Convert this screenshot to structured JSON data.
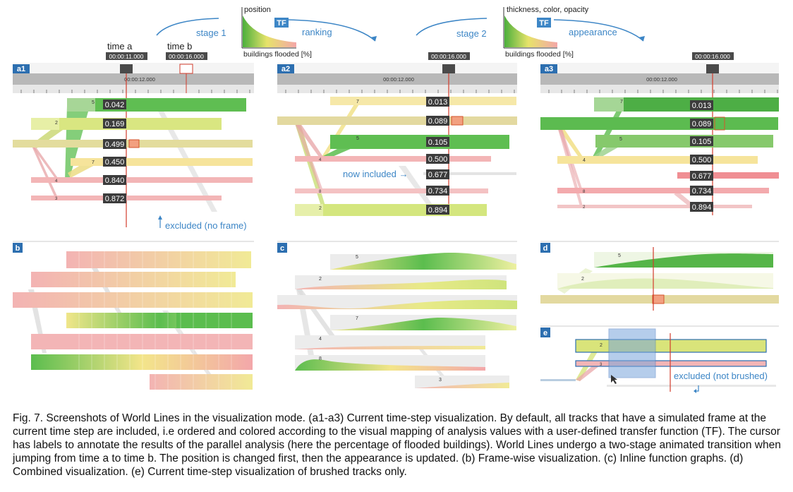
{
  "header": {
    "stage1_label": "stage 1",
    "stage2_label": "stage 2",
    "tf_label": "TF",
    "ranking_label": "ranking",
    "appearance_label": "appearance",
    "tf1_axis_y": "position",
    "tf1_axis_x": "buildings flooded [%]",
    "tf2_axis_y": "thickness, color, opacity",
    "tf2_axis_x": "buildings flooded [%]",
    "time_a_label": "time a",
    "time_b_label": "time b",
    "time_a_value": "00:00:11.000",
    "time_b_value": "00:00:16.000",
    "cursor_time": "00:00:16.000",
    "ruler_time": "00:00:12.000"
  },
  "panels": {
    "a1": {
      "tag": "a1",
      "tracks": [
        {
          "id": "5",
          "value": "0.042"
        },
        {
          "id": "2",
          "value": "0.169"
        },
        {
          "id": "",
          "value": "0.499"
        },
        {
          "id": "7",
          "value": "0.450"
        },
        {
          "id": "4",
          "value": "0.840"
        },
        {
          "id": "3",
          "value": "0.872"
        }
      ],
      "annotation": "excluded (no frame)"
    },
    "a2": {
      "tag": "a2",
      "tracks": [
        {
          "id": "7",
          "value": "0.013"
        },
        {
          "id": "",
          "value": "0.089"
        },
        {
          "id": "5",
          "value": "0.105"
        },
        {
          "id": "4",
          "value": "0.500"
        },
        {
          "id": "",
          "value": "0.677"
        },
        {
          "id": "8",
          "value": "0.734"
        },
        {
          "id": "2",
          "value": "0.894"
        }
      ],
      "annotation": "now included →"
    },
    "a3": {
      "tag": "a3",
      "tracks": [
        {
          "id": "7",
          "value": "0.013"
        },
        {
          "id": "",
          "value": "0.089"
        },
        {
          "id": "5",
          "value": "0.105"
        },
        {
          "id": "4",
          "value": "0.500"
        },
        {
          "id": "",
          "value": "0.677"
        },
        {
          "id": "8",
          "value": "0.734"
        },
        {
          "id": "2",
          "value": "0.894"
        }
      ]
    },
    "b": {
      "tag": "b"
    },
    "c": {
      "tag": "c",
      "track_ids": [
        "5",
        "2",
        "7",
        "4",
        "8",
        "3"
      ]
    },
    "d": {
      "tag": "d",
      "track_ids": [
        "5",
        "2"
      ]
    },
    "e": {
      "tag": "e",
      "track_ids": [
        "2",
        "3"
      ],
      "annotation": "excluded (not brushed)"
    }
  },
  "caption": {
    "fig_label": "Fig. 7.",
    "text": "Screenshots of World Lines in the visualization mode. (a1-a3) Current time-step visualization. By default, all tracks that have a simulated frame at the current time step are included, i.e ordered and colored according to the visual mapping of analysis values with a user-defined transfer function (TF). The cursor has labels to annotate the results of the parallel analysis (here the percentage of flooded buildings). World Lines undergo a two-stage animated transition when jumping from time a to time b. The position is changed first, then the appearance is updated. (b) Frame-wise visualization. (c) Inline function graphs. (d) Combined visualization. (e) Current time-step visualization of brushed tracks only."
  },
  "colors": {
    "accent_blue": "#3d86c6",
    "cursor_red": "#d23c2c",
    "green": "#5bbd4e",
    "yellow": "#f3e58a",
    "pink": "#f0a8ab"
  }
}
